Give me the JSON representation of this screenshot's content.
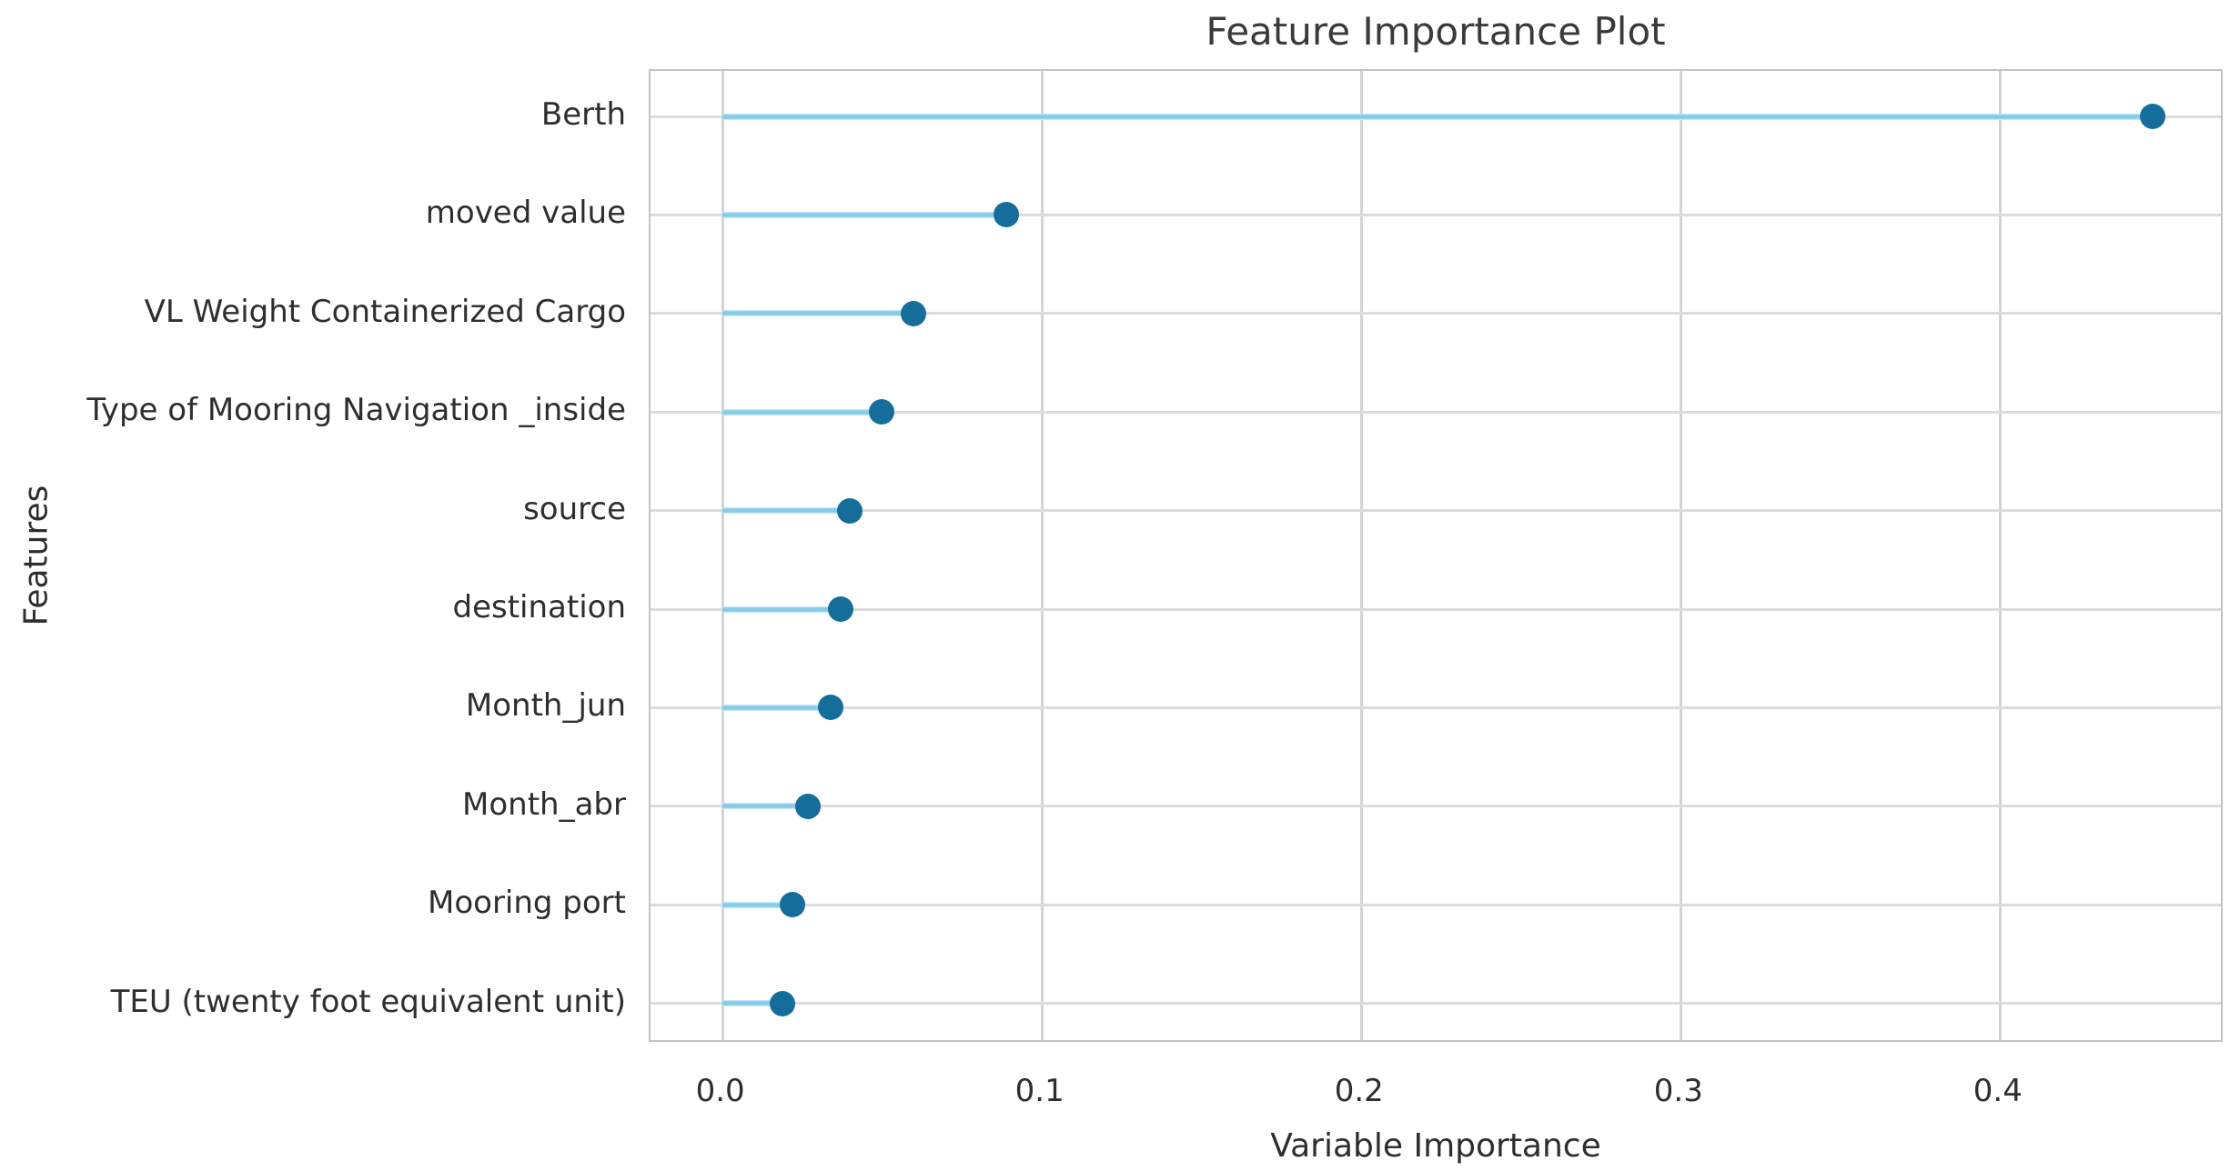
{
  "chart_data": {
    "type": "bar",
    "variant": "horizontal-lollipop",
    "title": "Feature Importance Plot",
    "xlabel": "Variable Importance",
    "ylabel": "Features",
    "categories": [
      "Berth",
      "moved value",
      "VL Weight Containerized Cargo",
      "Type of Mooring Navigation _inside",
      "source",
      "destination",
      "Month_jun",
      "Month_abr",
      "Mooring port",
      "TEU (twenty foot equivalent unit)"
    ],
    "values": [
      0.448,
      0.089,
      0.06,
      0.05,
      0.04,
      0.037,
      0.034,
      0.027,
      0.022,
      0.019
    ],
    "xticks": [
      {
        "value": 0.0,
        "label": "0.0"
      },
      {
        "value": 0.1,
        "label": "0.1"
      },
      {
        "value": 0.2,
        "label": "0.2"
      },
      {
        "value": 0.3,
        "label": "0.3"
      },
      {
        "value": 0.4,
        "label": "0.4"
      }
    ],
    "xlim": [
      -0.0224,
      0.4704
    ],
    "grid": true,
    "legend": "none",
    "colors": {
      "stem": "#85cbea",
      "dot": "#156d9c",
      "grid_vertical": "#d4d4d4",
      "grid_horizontal": "#dcdcdc",
      "border": "#c3c3c3",
      "text": "#2e2e2e",
      "title": "#3a3a3a",
      "background": "#ffffff"
    }
  }
}
